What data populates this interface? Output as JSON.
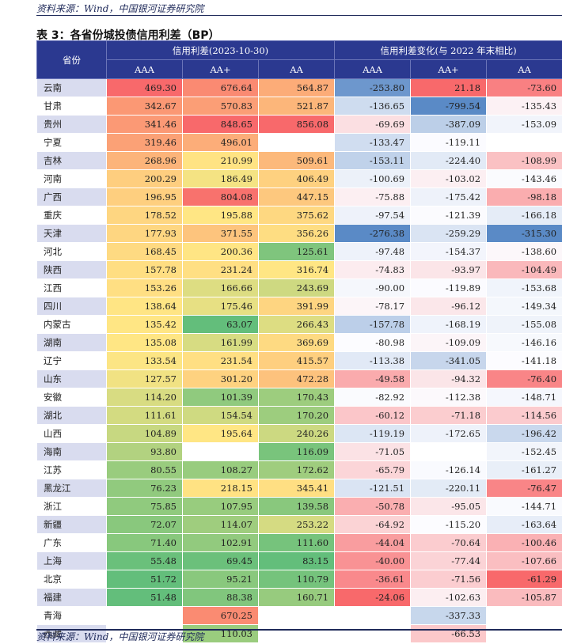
{
  "source_top": "资料来源：Wind，中国银河证券研究院",
  "title": "表 3：各省份城投债信用利差（BP）",
  "header": {
    "province": "省份",
    "group1": "信用利差(2023-10-30)",
    "group2": "信用利差变化(与 2022 年末相比)",
    "sub": [
      "AAA",
      "AA+",
      "AA",
      "AAA",
      "AA+",
      "AA"
    ]
  },
  "rows": [
    {
      "p": "云南",
      "v": [
        "469.30",
        "676.64",
        "564.87",
        "-253.80",
        "21.18",
        "-73.60"
      ]
    },
    {
      "p": "甘肃",
      "v": [
        "342.67",
        "570.83",
        "521.87",
        "-136.65",
        "-799.54",
        "-135.43"
      ]
    },
    {
      "p": "贵州",
      "v": [
        "341.46",
        "848.65",
        "856.08",
        "-69.69",
        "-387.09",
        "-153.09"
      ]
    },
    {
      "p": "宁夏",
      "v": [
        "319.46",
        "496.01",
        "",
        "-133.47",
        "-119.11",
        ""
      ]
    },
    {
      "p": "吉林",
      "v": [
        "268.96",
        "210.99",
        "509.61",
        "-153.11",
        "-224.40",
        "-108.99"
      ]
    },
    {
      "p": "河南",
      "v": [
        "200.29",
        "186.49",
        "406.49",
        "-100.69",
        "-103.02",
        "-143.46"
      ]
    },
    {
      "p": "广西",
      "v": [
        "196.95",
        "804.08",
        "447.15",
        "-75.88",
        "-175.42",
        "-98.18"
      ]
    },
    {
      "p": "重庆",
      "v": [
        "178.52",
        "195.88",
        "375.62",
        "-97.54",
        "-121.39",
        "-166.18"
      ]
    },
    {
      "p": "天津",
      "v": [
        "177.93",
        "371.55",
        "356.26",
        "-276.38",
        "-259.29",
        "-315.30"
      ]
    },
    {
      "p": "河北",
      "v": [
        "168.45",
        "200.36",
        "125.61",
        "-97.48",
        "-154.37",
        "-138.60"
      ]
    },
    {
      "p": "陕西",
      "v": [
        "157.78",
        "231.24",
        "316.74",
        "-74.83",
        "-93.97",
        "-104.49"
      ]
    },
    {
      "p": "江西",
      "v": [
        "153.26",
        "166.66",
        "243.69",
        "-90.00",
        "-119.89",
        "-153.68"
      ]
    },
    {
      "p": "四川",
      "v": [
        "138.64",
        "175.46",
        "391.99",
        "-78.17",
        "-96.12",
        "-149.34"
      ]
    },
    {
      "p": "内蒙古",
      "v": [
        "135.42",
        "63.07",
        "266.43",
        "-157.78",
        "-168.19",
        "-155.08"
      ]
    },
    {
      "p": "湖南",
      "v": [
        "135.08",
        "161.99",
        "369.69",
        "-80.98",
        "-109.09",
        "-146.16"
      ]
    },
    {
      "p": "辽宁",
      "v": [
        "133.54",
        "231.54",
        "415.57",
        "-113.38",
        "-341.05",
        "-141.18"
      ]
    },
    {
      "p": "山东",
      "v": [
        "127.57",
        "301.20",
        "472.28",
        "-49.58",
        "-94.32",
        "-76.40"
      ]
    },
    {
      "p": "安徽",
      "v": [
        "114.20",
        "101.39",
        "170.43",
        "-82.92",
        "-112.38",
        "-148.71"
      ]
    },
    {
      "p": "湖北",
      "v": [
        "111.61",
        "154.54",
        "170.20",
        "-60.12",
        "-71.18",
        "-114.56"
      ]
    },
    {
      "p": "山西",
      "v": [
        "104.89",
        "195.64",
        "240.26",
        "-119.19",
        "-172.65",
        "-196.42"
      ]
    },
    {
      "p": "海南",
      "v": [
        "93.80",
        "",
        "116.09",
        "-71.05",
        "",
        "-152.45"
      ]
    },
    {
      "p": "江苏",
      "v": [
        "80.55",
        "108.27",
        "172.62",
        "-65.79",
        "-126.14",
        "-161.27"
      ]
    },
    {
      "p": "黑龙江",
      "v": [
        "76.23",
        "218.15",
        "345.41",
        "-121.51",
        "-220.11",
        "-76.47"
      ]
    },
    {
      "p": "浙江",
      "v": [
        "75.85",
        "107.95",
        "139.58",
        "-50.78",
        "-95.05",
        "-144.71"
      ]
    },
    {
      "p": "新疆",
      "v": [
        "72.07",
        "114.07",
        "253.22",
        "-64.92",
        "-115.20",
        "-163.64"
      ]
    },
    {
      "p": "广东",
      "v": [
        "71.40",
        "102.91",
        "111.60",
        "-44.04",
        "-70.64",
        "-100.46"
      ]
    },
    {
      "p": "上海",
      "v": [
        "55.48",
        "69.45",
        "83.15",
        "-40.00",
        "-77.44",
        "-107.66"
      ]
    },
    {
      "p": "北京",
      "v": [
        "51.72",
        "95.21",
        "110.79",
        "-36.61",
        "-71.56",
        "-61.29"
      ]
    },
    {
      "p": "福建",
      "v": [
        "51.48",
        "88.38",
        "160.71",
        "-24.06",
        "-102.63",
        "-105.87"
      ]
    },
    {
      "p": "青海",
      "v": [
        "",
        "670.25",
        "",
        "",
        "-337.33",
        ""
      ]
    },
    {
      "p": "西藏",
      "v": [
        "",
        "110.03",
        "",
        "",
        "-66.53",
        ""
      ]
    }
  ],
  "source_bottom": "资料来源：Wind，中国银河证券研究院"
}
